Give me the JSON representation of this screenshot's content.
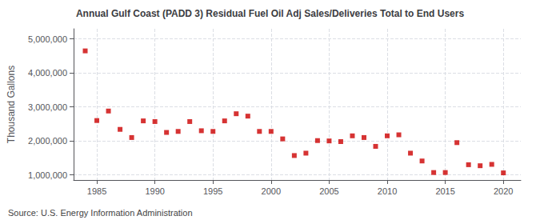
{
  "chart_data": {
    "type": "scatter",
    "title": "Annual Gulf Coast (PADD 3) Residual Fuel Oil Adj Sales/Deliveries Total to End Users",
    "ylabel": "Thousand Gallons",
    "annotations": [
      "Source: U.S. Energy Information Administration"
    ],
    "x": [
      1984,
      1985,
      1986,
      1987,
      1988,
      1989,
      1990,
      1991,
      1992,
      1993,
      1994,
      1995,
      1996,
      1997,
      1998,
      1999,
      2000,
      2001,
      2002,
      2003,
      2004,
      2005,
      2006,
      2007,
      2008,
      2009,
      2010,
      2011,
      2012,
      2013,
      2014,
      2015,
      2016,
      2017,
      2018,
      2019,
      2020
    ],
    "values": [
      4650000,
      2600000,
      2880000,
      2340000,
      2100000,
      2590000,
      2570000,
      2250000,
      2280000,
      2570000,
      2300000,
      2280000,
      2590000,
      2800000,
      2730000,
      2280000,
      2280000,
      2060000,
      1570000,
      1640000,
      2010000,
      2000000,
      1980000,
      2150000,
      2100000,
      1840000,
      2150000,
      2180000,
      1640000,
      1410000,
      1070000,
      1070000,
      1950000,
      1300000,
      1270000,
      1310000,
      1060000
    ],
    "color": "#cc0000",
    "marker": "square",
    "xlim": [
      1983.0,
      2021.5
    ],
    "xticks": [
      1985,
      1990,
      1995,
      2000,
      2005,
      2010,
      2015,
      2020
    ],
    "ylim": [
      850000,
      5300000
    ],
    "yticks": [
      {
        "value": 1000000,
        "label": "1,000,000"
      },
      {
        "value": 2000000,
        "label": "2,000,000"
      },
      {
        "value": 3000000,
        "label": "3,000,000"
      },
      {
        "value": 4000000,
        "label": "4,000,000"
      },
      {
        "value": 5000000,
        "label": "5,000,000"
      }
    ],
    "grid": true
  }
}
